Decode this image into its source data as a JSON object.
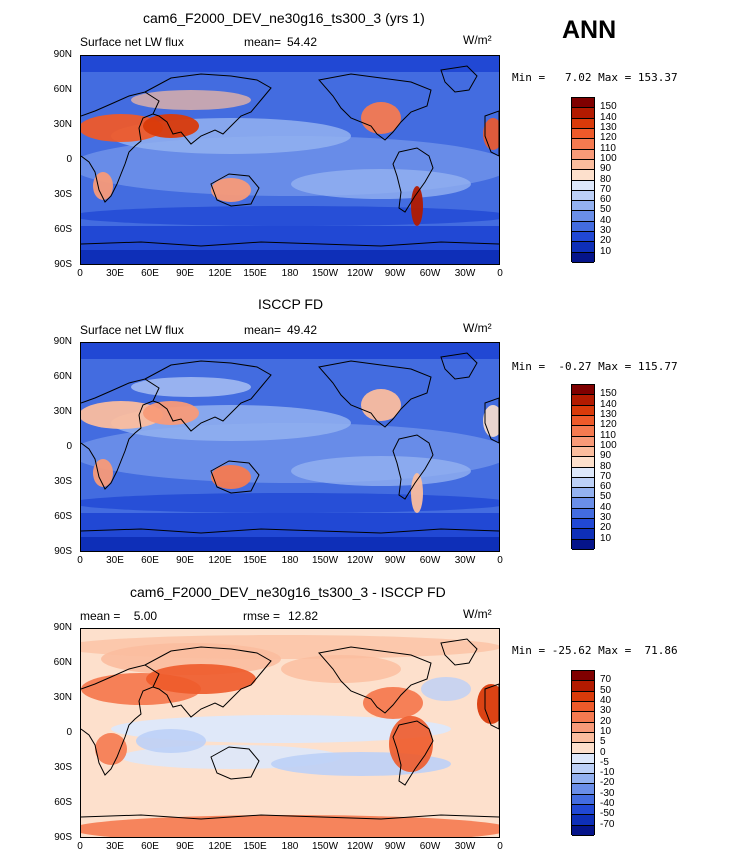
{
  "season": "ANN",
  "units": "W/m²",
  "lat_ticks": [
    "90N",
    "60N",
    "30N",
    "0",
    "30S",
    "60S",
    "90S"
  ],
  "lon_ticks": [
    "0",
    "30E",
    "60E",
    "90E",
    "120E",
    "150E",
    "180",
    "150W",
    "120W",
    "90W",
    "60W",
    "30W",
    "0"
  ],
  "panels": [
    {
      "title": "cam6_F2000_DEV_ne30g16_ts300_3 (yrs 1)",
      "left_label": "Surface net LW flux",
      "stat_label": "mean=",
      "stat_value": "54.42",
      "minmax": "Min =   7.02 Max = 153.37",
      "cb_labels": [
        "150",
        "140",
        "130",
        "120",
        "110",
        "100",
        "90",
        "80",
        "70",
        "60",
        "50",
        "40",
        "30",
        "20",
        "10"
      ],
      "field": "model"
    },
    {
      "title": "ISCCP FD",
      "left_label": "Surface net LW flux",
      "stat_label": "mean=",
      "stat_value": "49.42",
      "minmax": "Min =  -0.27 Max = 115.77",
      "cb_labels": [
        "150",
        "140",
        "130",
        "120",
        "110",
        "100",
        "90",
        "80",
        "70",
        "60",
        "50",
        "40",
        "30",
        "20",
        "10"
      ],
      "field": "obs"
    },
    {
      "title": "cam6_F2000_DEV_ne30g16_ts300_3 - ISCCP FD",
      "left_label": "mean =    5.00",
      "stat_label": "rmse =",
      "stat_value": "12.82",
      "minmax": "Min = -25.62 Max =  71.86",
      "cb_labels": [
        "70",
        "50",
        "40",
        "30",
        "20",
        "10",
        "5",
        "0",
        "-5",
        "-10",
        "-20",
        "-30",
        "-40",
        "-50",
        "-70"
      ],
      "field": "diff"
    }
  ],
  "colors": {
    "scale": [
      "#7f0000",
      "#b21a00",
      "#d93a0a",
      "#ee5a2a",
      "#f57a50",
      "#f89a78",
      "#fbbd9e",
      "#fde0cc",
      "#dde8fb",
      "#bcd0f7",
      "#93b1f0",
      "#6a8ee8",
      "#436ce0",
      "#2148d4",
      "#0e2fb8",
      "#05148a"
    ]
  }
}
